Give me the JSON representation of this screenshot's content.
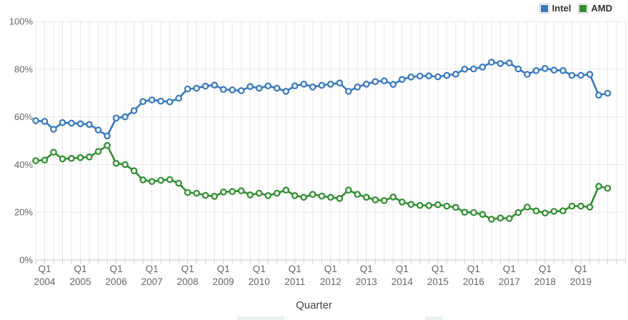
{
  "page": {
    "background": "#ffffff",
    "artifact_color": "#e8f1f2"
  },
  "chart_data": {
    "type": "line",
    "title": "",
    "xlabel": "Quarter",
    "ylabel": "",
    "ylim": [
      0,
      100
    ],
    "grid": true,
    "legend_position": "top-right",
    "y_ticks": [
      "0%",
      "20%",
      "40%",
      "60%",
      "80%",
      "100%"
    ],
    "x_ticks": [
      {
        "quarter": "Q1",
        "year": "2004"
      },
      {
        "quarter": "Q1",
        "year": "2005"
      },
      {
        "quarter": "Q1",
        "year": "2006"
      },
      {
        "quarter": "Q1",
        "year": "2007"
      },
      {
        "quarter": "Q1",
        "year": "2008"
      },
      {
        "quarter": "Q1",
        "year": "2009"
      },
      {
        "quarter": "Q1",
        "year": "2010"
      },
      {
        "quarter": "Q1",
        "year": "2011"
      },
      {
        "quarter": "Q1",
        "year": "2012"
      },
      {
        "quarter": "Q1",
        "year": "2013"
      },
      {
        "quarter": "Q1",
        "year": "2014"
      },
      {
        "quarter": "Q1",
        "year": "2015"
      },
      {
        "quarter": "Q1",
        "year": "2016"
      },
      {
        "quarter": "Q1",
        "year": "2017"
      },
      {
        "quarter": "Q1",
        "year": "2018"
      },
      {
        "quarter": "Q1",
        "year": "2019"
      }
    ],
    "x": [
      "Q4 2003",
      "Q1 2004",
      "Q2 2004",
      "Q3 2004",
      "Q4 2004",
      "Q1 2005",
      "Q2 2005",
      "Q3 2005",
      "Q4 2005",
      "Q1 2006",
      "Q2 2006",
      "Q3 2006",
      "Q4 2006",
      "Q1 2007",
      "Q2 2007",
      "Q3 2007",
      "Q4 2007",
      "Q1 2008",
      "Q2 2008",
      "Q3 2008",
      "Q4 2008",
      "Q1 2009",
      "Q2 2009",
      "Q3 2009",
      "Q4 2009",
      "Q1 2010",
      "Q2 2010",
      "Q3 2010",
      "Q4 2010",
      "Q1 2011",
      "Q2 2011",
      "Q3 2011",
      "Q4 2011",
      "Q1 2012",
      "Q2 2012",
      "Q3 2012",
      "Q4 2012",
      "Q1 2013",
      "Q2 2013",
      "Q3 2013",
      "Q4 2013",
      "Q1 2014",
      "Q2 2014",
      "Q3 2014",
      "Q4 2014",
      "Q1 2015",
      "Q2 2015",
      "Q3 2015",
      "Q4 2015",
      "Q1 2016",
      "Q2 2016",
      "Q3 2016",
      "Q4 2016",
      "Q1 2017",
      "Q2 2017",
      "Q3 2017",
      "Q4 2017",
      "Q1 2018",
      "Q2 2018",
      "Q3 2018",
      "Q4 2018",
      "Q1 2019",
      "Q2 2019",
      "Q3 2019",
      "Q4 2019"
    ],
    "series": [
      {
        "name": "Intel",
        "color": "#3778c2",
        "values": [
          58.4,
          58.1,
          54.8,
          57.6,
          57.4,
          57.1,
          56.8,
          54.5,
          52.0,
          59.5,
          60.0,
          62.6,
          66.4,
          67.1,
          66.6,
          66.3,
          67.8,
          71.7,
          72.0,
          72.9,
          73.3,
          71.5,
          71.3,
          71.0,
          72.7,
          72.0,
          73.0,
          72.0,
          70.7,
          73.0,
          73.7,
          72.5,
          73.2,
          73.7,
          74.2,
          70.7,
          72.5,
          73.7,
          74.8,
          75.1,
          73.6,
          75.7,
          76.7,
          77.1,
          77.2,
          76.8,
          77.4,
          77.9,
          80.0,
          80.1,
          80.9,
          82.9,
          82.4,
          82.6,
          80.1,
          77.8,
          79.4,
          80.3,
          79.6,
          79.4,
          77.4,
          77.4,
          77.8,
          69.1,
          69.9
        ]
      },
      {
        "name": "AMD",
        "color": "#2f8e2f",
        "values": [
          41.6,
          41.9,
          45.2,
          42.4,
          42.6,
          42.9,
          43.2,
          45.5,
          48.0,
          40.5,
          40.0,
          37.4,
          33.6,
          32.9,
          33.4,
          33.7,
          32.2,
          28.3,
          28.0,
          27.1,
          26.7,
          28.5,
          28.7,
          29.0,
          27.3,
          28.0,
          27.0,
          28.0,
          29.3,
          27.0,
          26.3,
          27.5,
          26.8,
          26.3,
          25.8,
          29.3,
          27.5,
          26.3,
          25.2,
          24.9,
          26.4,
          24.3,
          23.3,
          22.9,
          22.8,
          23.2,
          22.6,
          22.1,
          20.0,
          19.9,
          19.1,
          17.1,
          17.6,
          17.4,
          19.9,
          22.2,
          20.6,
          19.7,
          20.4,
          20.6,
          22.6,
          22.6,
          22.2,
          30.9,
          30.1
        ]
      }
    ],
    "style": {
      "grid_color": "#e8e8e8",
      "axis_line_color": "#c9c9c9",
      "tick_label_color": "#666666",
      "marker_fill": "#ffffff"
    }
  }
}
